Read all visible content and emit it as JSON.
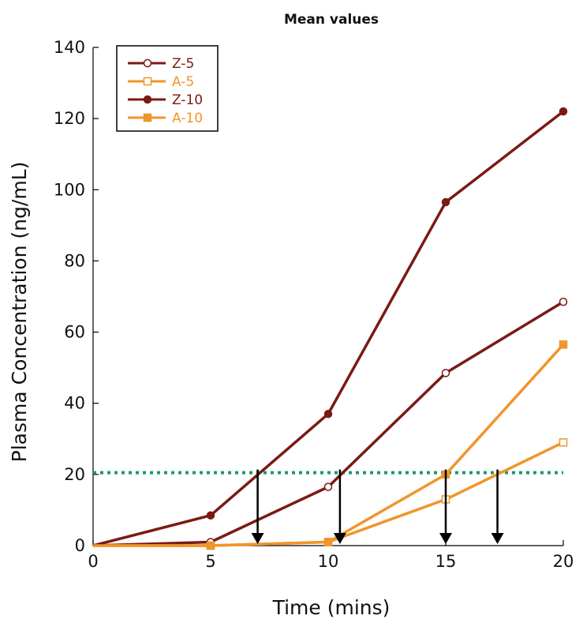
{
  "chart_data": {
    "type": "line",
    "title": "Mean values",
    "xlabel": "Time (mins)",
    "ylabel": "Plasma Concentration (ng/mL)",
    "xlim": [
      0,
      20
    ],
    "ylim": [
      0,
      140
    ],
    "xticks": [
      0,
      5,
      10,
      15,
      20
    ],
    "yticks": [
      0,
      20,
      40,
      60,
      80,
      100,
      120,
      140
    ],
    "x": [
      0,
      5,
      10,
      15,
      20
    ],
    "series": [
      {
        "name": "Z-5",
        "color": "#7a1a14",
        "marker": "open-circle",
        "values": [
          0,
          1,
          16.5,
          48.5,
          68.5
        ]
      },
      {
        "name": "A-5",
        "color": "#f0952a",
        "marker": "open-square",
        "values": [
          0,
          0,
          1,
          13,
          29
        ]
      },
      {
        "name": "Z-10",
        "color": "#7a1a14",
        "marker": "filled-circle",
        "values": [
          0,
          8.5,
          37,
          96.5,
          122
        ]
      },
      {
        "name": "A-10",
        "color": "#f0952a",
        "marker": "filled-square",
        "values": [
          0,
          0,
          1,
          20,
          56.5
        ]
      }
    ],
    "threshold": {
      "value": 20.5,
      "color": "#1a9a6a",
      "style": "dotted"
    },
    "arrows": [
      {
        "x": 7
      },
      {
        "x": 10.5
      },
      {
        "x": 15
      },
      {
        "x": 17.2
      }
    ],
    "legend_placement": "top-left",
    "grid": false
  }
}
